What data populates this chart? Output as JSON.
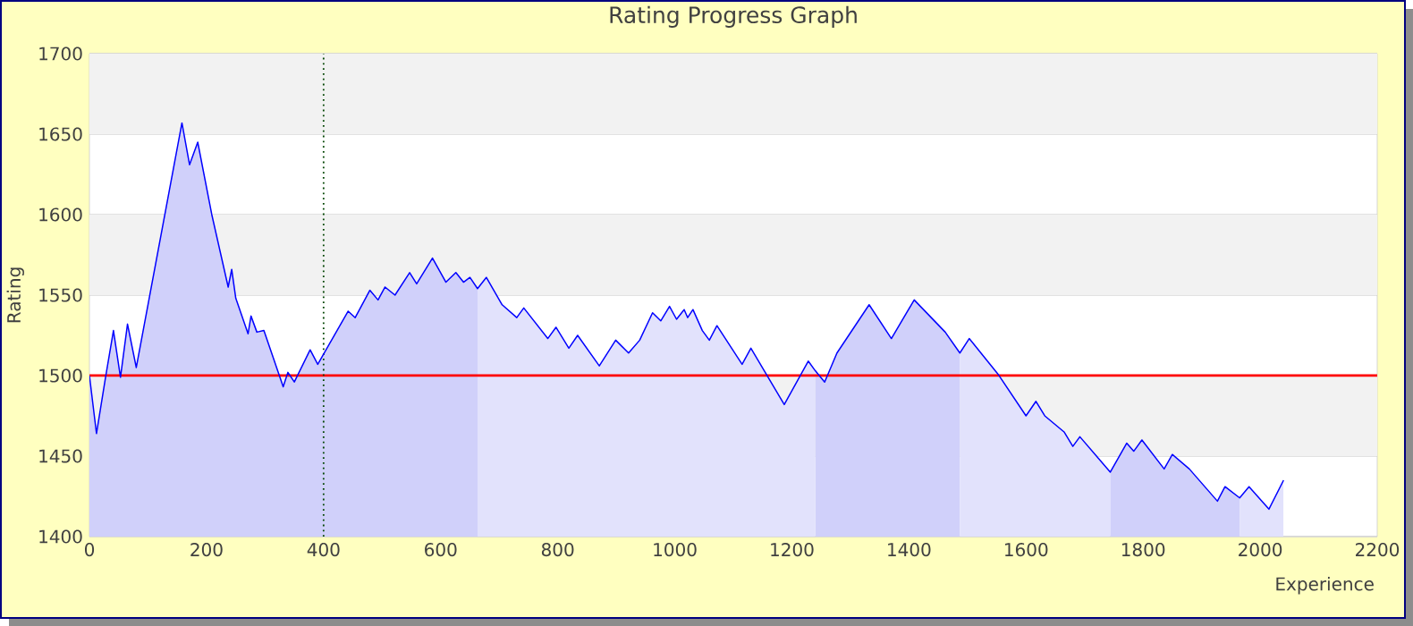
{
  "chart_data": {
    "type": "line",
    "title": "Rating Progress Graph",
    "xlabel": "Experience",
    "ylabel": "Rating",
    "xlim": [
      0,
      2200
    ],
    "ylim": [
      1400,
      1700
    ],
    "xticks": [
      0,
      200,
      400,
      600,
      800,
      1000,
      1200,
      1400,
      1600,
      1800,
      2000,
      2200
    ],
    "yticks": [
      1400,
      1450,
      1500,
      1550,
      1600,
      1650,
      1700
    ],
    "grid": "y",
    "ref_lines": [
      {
        "axis": "y",
        "value": 1500,
        "color": "#ff0000",
        "line_style": "solid"
      },
      {
        "axis": "x",
        "value": 400,
        "color": "#004400",
        "line_style": "dotted"
      }
    ],
    "series": [
      {
        "type": "area",
        "color": "#d0d0fa",
        "x": [
          0,
          12,
          28,
          41,
          53,
          65,
          80,
          158,
          171,
          185,
          209,
          237,
          243,
          250,
          271,
          276,
          286,
          298,
          331,
          339,
          350,
          377,
          390,
          442,
          454,
          479,
          493,
          505,
          522,
          547,
          559,
          586,
          609,
          626,
          639,
          650,
          663
        ],
        "values": [
          1500,
          1464,
          1500,
          1528,
          1499,
          1532,
          1505,
          1657,
          1631,
          1645,
          1600,
          1555,
          1566,
          1548,
          1526,
          1537,
          1527,
          1528,
          1493,
          1502,
          1496,
          1516,
          1507,
          1540,
          1536,
          1553,
          1547,
          1555,
          1550,
          1564,
          1557,
          1573,
          1558,
          1564,
          1558,
          1561,
          1554
        ]
      },
      {
        "type": "area",
        "color": "#e2e2fc",
        "x": [
          663,
          678,
          705,
          730,
          742,
          783,
          797,
          819,
          834,
          871,
          899,
          921,
          940,
          962,
          976,
          991,
          1003,
          1016,
          1022,
          1031,
          1047,
          1059,
          1072,
          1115,
          1130,
          1187,
          1228,
          1240
        ],
        "values": [
          1554,
          1561,
          1544,
          1536,
          1542,
          1523,
          1530,
          1517,
          1525,
          1506,
          1522,
          1514,
          1522,
          1539,
          1534,
          1543,
          1535,
          1541,
          1536,
          1541,
          1528,
          1522,
          1531,
          1507,
          1517,
          1482,
          1509,
          1503
        ]
      },
      {
        "type": "area",
        "color": "#d0d0fa",
        "x": [
          1240,
          1256,
          1277,
          1332,
          1370,
          1409,
          1462,
          1487
        ],
        "values": [
          1503,
          1496,
          1514,
          1544,
          1523,
          1547,
          1527,
          1514
        ]
      },
      {
        "type": "area",
        "color": "#e2e2fc",
        "x": [
          1487,
          1503,
          1552,
          1600,
          1617,
          1632,
          1665,
          1680,
          1692,
          1744
        ],
        "values": [
          1514,
          1523,
          1501,
          1475,
          1484,
          1475,
          1465,
          1456,
          1462,
          1440
        ]
      },
      {
        "type": "area",
        "color": "#d0d0fa",
        "x": [
          1744,
          1772,
          1784,
          1798,
          1836,
          1850,
          1879,
          1927,
          1940,
          1965
        ],
        "values": [
          1440,
          1458,
          1453,
          1460,
          1442,
          1451,
          1442,
          1422,
          1431,
          1424
        ]
      },
      {
        "type": "area",
        "color": "#e2e2fc",
        "x": [
          1965,
          1981,
          2015,
          2040
        ],
        "values": [
          1424,
          1431,
          1417,
          1435
        ]
      },
      {
        "color": "#0000ff",
        "x": [
          0,
          12,
          28,
          41,
          53,
          65,
          80,
          158,
          171,
          185,
          209,
          237,
          243,
          250,
          271,
          276,
          286,
          298,
          331,
          339,
          350,
          377,
          390,
          442,
          454,
          479,
          493,
          505,
          522,
          547,
          559,
          586,
          609,
          626,
          639,
          650,
          663,
          678,
          705,
          730,
          742,
          783,
          797,
          819,
          834,
          871,
          899,
          921,
          940,
          962,
          976,
          991,
          1003,
          1016,
          1022,
          1031,
          1047,
          1059,
          1072,
          1115,
          1130,
          1187,
          1228,
          1240,
          1256,
          1277,
          1332,
          1370,
          1409,
          1462,
          1487,
          1503,
          1552,
          1600,
          1617,
          1632,
          1665,
          1680,
          1692,
          1744,
          1772,
          1784,
          1798,
          1836,
          1850,
          1879,
          1927,
          1940,
          1965,
          1981,
          2015,
          2040
        ],
        "values": [
          1500,
          1464,
          1500,
          1528,
          1499,
          1532,
          1505,
          1657,
          1631,
          1645,
          1600,
          1555,
          1566,
          1548,
          1526,
          1537,
          1527,
          1528,
          1493,
          1502,
          1496,
          1516,
          1507,
          1540,
          1536,
          1553,
          1547,
          1555,
          1550,
          1564,
          1557,
          1573,
          1558,
          1564,
          1558,
          1561,
          1554,
          1561,
          1544,
          1536,
          1542,
          1523,
          1530,
          1517,
          1525,
          1506,
          1522,
          1514,
          1522,
          1539,
          1534,
          1543,
          1535,
          1541,
          1536,
          1541,
          1528,
          1522,
          1531,
          1507,
          1517,
          1482,
          1509,
          1503,
          1496,
          1514,
          1544,
          1523,
          1547,
          1527,
          1514,
          1523,
          1501,
          1475,
          1484,
          1475,
          1465,
          1456,
          1462,
          1440,
          1458,
          1453,
          1460,
          1442,
          1451,
          1442,
          1422,
          1431,
          1424,
          1431,
          1417,
          1435
        ]
      }
    ]
  }
}
